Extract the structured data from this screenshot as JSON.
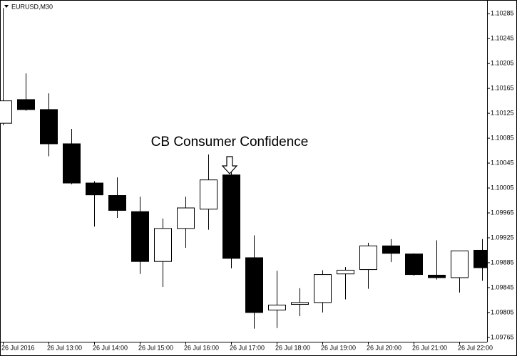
{
  "chart_data": {
    "type": "candlestick",
    "title": "EURUSD,M30",
    "annotation": "CB Consumer Confidence",
    "categories": [
      "26 Jul 2016",
      null,
      "26 Jul 13:00",
      null,
      "26 Jul 14:00",
      null,
      "26 Jul 15:00",
      null,
      "26 Jul 16:00",
      null,
      "26 Jul 17:00",
      null,
      "26 Jul 18:00",
      null,
      "26 Jul 19:00",
      null,
      "26 Jul 20:00",
      null,
      "26 Jul 21:00",
      null,
      "26 Jul 22:00",
      null
    ],
    "open": [
      1.10109,
      1.10147,
      1.10131,
      1.10076,
      1.10013,
      1.09993,
      1.09967,
      1.09887,
      1.0994,
      1.09971,
      1.10026,
      1.09893,
      1.09809,
      1.09818,
      1.09821,
      1.09867,
      1.09874,
      1.09912,
      1.09899,
      1.09865,
      1.09861,
      1.09905
    ],
    "high": [
      1.10294,
      1.10189,
      1.10157,
      1.101,
      1.10016,
      1.10022,
      1.09991,
      1.09956,
      1.09991,
      1.10059,
      1.1003,
      1.09929,
      1.09872,
      1.09844,
      1.09873,
      1.09878,
      1.09917,
      1.09923,
      1.099,
      1.09921,
      1.09904,
      1.09923
    ],
    "low": [
      1.10106,
      1.10129,
      1.10056,
      1.10011,
      1.09943,
      1.09957,
      1.09867,
      1.09846,
      1.09909,
      1.09938,
      1.09876,
      1.09779,
      1.0978,
      1.09799,
      1.09805,
      1.09826,
      1.09843,
      1.09886,
      1.09864,
      1.09858,
      1.09837,
      1.09856
    ],
    "close": [
      1.10145,
      1.10131,
      1.10076,
      1.10013,
      1.09994,
      1.09969,
      1.09887,
      1.0994,
      1.09973,
      1.10018,
      1.09892,
      1.09805,
      1.09817,
      1.09821,
      1.09866,
      1.09873,
      1.09912,
      1.099,
      1.09866,
      1.09861,
      1.09904,
      1.09877
    ],
    "up_color": "#ffffff",
    "down_color": "#000000",
    "ylim": [
      1.09758,
      1.10307
    ],
    "yticks": [
      1.09765,
      1.09805,
      1.09845,
      1.09885,
      1.09925,
      1.09965,
      1.10005,
      1.10045,
      1.10085,
      1.10125,
      1.10165,
      1.10205,
      1.10245,
      1.10285
    ]
  }
}
